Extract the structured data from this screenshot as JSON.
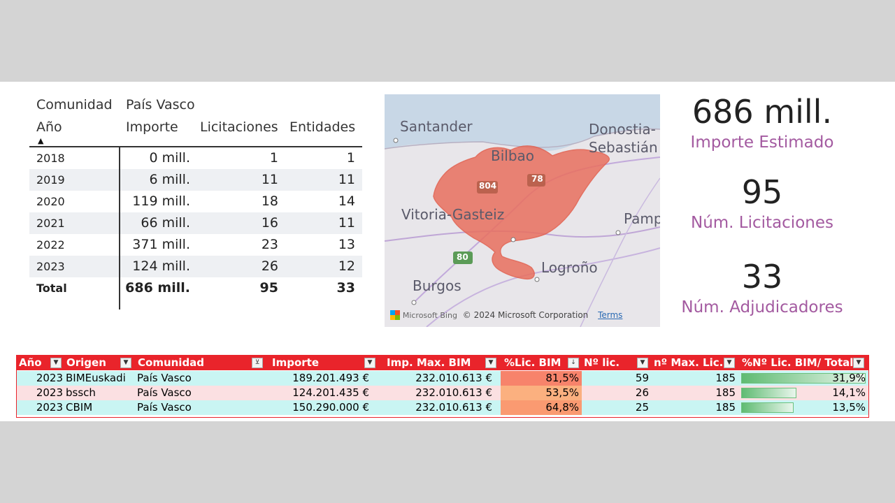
{
  "matrix": {
    "hdr1": {
      "c0": "Comunidad",
      "c1": "País Vasco"
    },
    "hdr2": {
      "c0": "Año",
      "c1": "Importe",
      "c2": "Licitaciones",
      "c3": "Entidades"
    },
    "rows": [
      {
        "year": "2018",
        "importe": "0 mill.",
        "lic": "1",
        "ent": "1"
      },
      {
        "year": "2019",
        "importe": "6 mill.",
        "lic": "11",
        "ent": "11"
      },
      {
        "year": "2020",
        "importe": "119 mill.",
        "lic": "18",
        "ent": "14"
      },
      {
        "year": "2021",
        "importe": "66 mill.",
        "lic": "16",
        "ent": "11"
      },
      {
        "year": "2022",
        "importe": "371 mill.",
        "lic": "23",
        "ent": "13"
      },
      {
        "year": "2023",
        "importe": "124 mill.",
        "lic": "26",
        "ent": "12"
      }
    ],
    "total": {
      "label": "Total",
      "importe": "686 mill.",
      "lic": "95",
      "ent": "33"
    }
  },
  "map": {
    "labels": {
      "santander": "Santander",
      "donostia": "Donostia-",
      "sebastian": "Sebastián",
      "bilbao": "Bilbao",
      "vitoria": "Vitoria-Gasteiz",
      "pamplona": "Pamp",
      "logrono": "Logroño",
      "burgos": "Burgos",
      "r804": "804",
      "r78": "78",
      "r80": "80"
    },
    "brand": "Microsoft Bing",
    "copyright": "© 2024 Microsoft Corporation",
    "terms": "Terms",
    "region_color": "#e9705f"
  },
  "kpis": [
    {
      "value": "686 mill.",
      "label": "Importe Estimado"
    },
    {
      "value": "95",
      "label": "Núm. Licitaciones"
    },
    {
      "value": "33",
      "label": "Núm. Adjudicadores"
    }
  ],
  "sheet": {
    "headers": [
      "Año",
      "Origen",
      "Comunidad",
      "Importe",
      "Imp. Max. BIM",
      "%Lic. BIM",
      "Nº lic.",
      "nº Max. Lic.",
      "%Nº Lic. BIM/ Total"
    ],
    "rows": [
      {
        "year": "2023",
        "origen": "BIMEuskadi",
        "comunidad": "País Vasco",
        "importe": "189.201.493 €",
        "impmax": "232.010.613 €",
        "pct": "81,5%",
        "nlic": "59",
        "nmax": "185",
        "ratio": "31,9%",
        "ratio_value": 31.9
      },
      {
        "year": "2023",
        "origen": "bssch",
        "comunidad": "País Vasco",
        "importe": "124.201.435 €",
        "impmax": "232.010.613 €",
        "pct": "53,5%",
        "nlic": "26",
        "nmax": "185",
        "ratio": "14,1%",
        "ratio_value": 14.1
      },
      {
        "year": "2023",
        "origen": "CBIM",
        "comunidad": "País Vasco",
        "importe": "150.290.000 €",
        "impmax": "232.010.613 €",
        "pct": "64,8%",
        "nlic": "25",
        "nmax": "185",
        "ratio": "13,5%",
        "ratio_value": 13.5
      }
    ],
    "colors": {
      "header": "#e9242b",
      "row_a": "#c9f5f3",
      "row_b": "#fbe0e2",
      "pct_high": "#f7836b",
      "pct_mid": "#fbb07f",
      "pct_low": "#fa9a71"
    }
  }
}
